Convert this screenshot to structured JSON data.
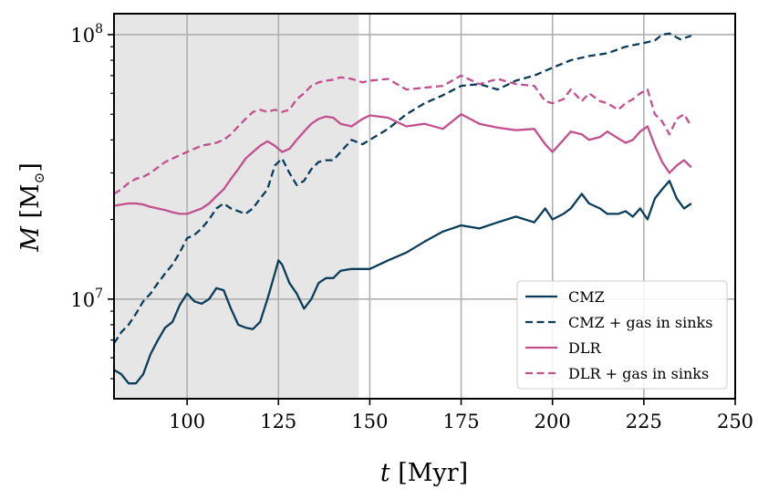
{
  "chart_data": {
    "type": "line",
    "title": "",
    "xlabel": "t [Myr]",
    "ylabel": "M [M⊙]",
    "xlim": [
      80,
      250
    ],
    "ylim": [
      4200000,
      120000000
    ],
    "yscale": "log",
    "grid": true,
    "legend_position": "lower-right",
    "shaded_region": {
      "x": [
        80,
        147
      ],
      "color": "#e6e6e6"
    },
    "x_ticks": [
      100,
      125,
      150,
      175,
      200,
      225,
      250
    ],
    "x_tick_labels": [
      "100",
      "125",
      "150",
      "175",
      "200",
      "225",
      "250"
    ],
    "y_major_ticks": [
      10000000,
      100000000
    ],
    "y_tick_labels": [
      {
        "base": "10",
        "exp": "7"
      },
      {
        "base": "10",
        "exp": "8"
      }
    ],
    "colors": {
      "cmz": "#0b3d5b",
      "dlr": "#c2508f",
      "shade": "#e6e6e6"
    },
    "series": [
      {
        "name": "CMZ",
        "style": "solid",
        "color": "#0b3d5b",
        "x": [
          80,
          82,
          84,
          86,
          88,
          90,
          92,
          94,
          96,
          98,
          100,
          102,
          104,
          106,
          108,
          110,
          112,
          114,
          116,
          118,
          120,
          122,
          124,
          125,
          126,
          128,
          130,
          132,
          134,
          136,
          138,
          140,
          142,
          145,
          148,
          150,
          155,
          160,
          165,
          170,
          175,
          180,
          185,
          190,
          195,
          198,
          200,
          203,
          205,
          208,
          210,
          213,
          215,
          218,
          220,
          222,
          224,
          226,
          228,
          230,
          232,
          234,
          236,
          238
        ],
        "values": [
          5400000,
          5200000,
          4800000,
          4800000,
          5200000,
          6200000,
          7000000,
          7800000,
          8200000,
          9500000,
          10500000,
          9800000,
          9600000,
          10000000,
          11000000,
          10800000,
          9200000,
          8000000,
          7800000,
          7700000,
          8200000,
          10000000,
          12500000,
          14000000,
          13500000,
          11500000,
          10500000,
          9200000,
          10000000,
          11500000,
          12000000,
          12000000,
          12800000,
          13000000,
          13000000,
          13000000,
          14000000,
          15000000,
          16500000,
          18000000,
          19000000,
          18500000,
          19500000,
          20500000,
          19500000,
          22000000,
          20000000,
          21000000,
          22000000,
          25000000,
          23000000,
          22000000,
          21000000,
          21000000,
          21500000,
          20500000,
          22000000,
          20000000,
          24000000,
          26000000,
          28000000,
          24000000,
          22000000,
          23000000
        ]
      },
      {
        "name": "CMZ + gas in sinks",
        "style": "dashed",
        "color": "#0b3d5b",
        "x": [
          80,
          82,
          84,
          86,
          88,
          90,
          92,
          94,
          96,
          98,
          100,
          102,
          104,
          106,
          108,
          110,
          112,
          114,
          116,
          118,
          120,
          122,
          124,
          126,
          128,
          130,
          132,
          134,
          136,
          138,
          140,
          142,
          145,
          148,
          150,
          155,
          160,
          165,
          170,
          175,
          180,
          185,
          190,
          195,
          200,
          205,
          210,
          215,
          220,
          225,
          228,
          230,
          232,
          235,
          238
        ],
        "values": [
          6800000,
          7500000,
          8000000,
          8800000,
          9800000,
          10500000,
          11500000,
          12500000,
          13500000,
          15000000,
          17000000,
          17500000,
          18500000,
          20000000,
          22000000,
          23000000,
          22000000,
          21500000,
          21000000,
          22000000,
          24000000,
          26000000,
          32000000,
          34000000,
          30000000,
          27000000,
          28000000,
          31000000,
          33000000,
          33500000,
          33500000,
          36000000,
          40000000,
          38500000,
          40000000,
          44000000,
          50000000,
          55000000,
          59000000,
          64000000,
          65000000,
          62000000,
          67000000,
          70000000,
          75000000,
          80000000,
          83000000,
          85000000,
          90000000,
          93000000,
          95000000,
          100000000,
          101000000,
          96000000,
          99000000
        ]
      },
      {
        "name": "DLR",
        "style": "solid",
        "color": "#c2508f",
        "x": [
          80,
          82,
          84,
          86,
          88,
          90,
          92,
          94,
          96,
          98,
          100,
          102,
          104,
          106,
          108,
          110,
          112,
          114,
          116,
          118,
          120,
          122,
          124,
          126,
          128,
          130,
          132,
          134,
          136,
          138,
          140,
          142,
          145,
          148,
          150,
          155,
          160,
          165,
          170,
          175,
          180,
          185,
          190,
          195,
          198,
          200,
          203,
          205,
          208,
          210,
          213,
          215,
          218,
          220,
          222,
          224,
          226,
          228,
          230,
          232,
          234,
          236,
          238
        ],
        "values": [
          22500000,
          22800000,
          23000000,
          23000000,
          22800000,
          22300000,
          22000000,
          21700000,
          21300000,
          21000000,
          21000000,
          21500000,
          22000000,
          23000000,
          24500000,
          26000000,
          28500000,
          31000000,
          34000000,
          36000000,
          38000000,
          39500000,
          38000000,
          36000000,
          37000000,
          40000000,
          43000000,
          46000000,
          48000000,
          49000000,
          48500000,
          46000000,
          45000000,
          48000000,
          49500000,
          48500000,
          45000000,
          46000000,
          44000000,
          50000000,
          46000000,
          44500000,
          43500000,
          44000000,
          38500000,
          36000000,
          40000000,
          43000000,
          42000000,
          40000000,
          41000000,
          43000000,
          40500000,
          39000000,
          40000000,
          43000000,
          45000000,
          38000000,
          33000000,
          30000000,
          32000000,
          33500000,
          31500000
        ]
      },
      {
        "name": "DLR + gas in sinks",
        "style": "dashed",
        "color": "#c2508f",
        "x": [
          80,
          82,
          84,
          86,
          88,
          90,
          92,
          94,
          96,
          98,
          100,
          102,
          104,
          106,
          108,
          110,
          112,
          114,
          116,
          118,
          120,
          122,
          124,
          126,
          128,
          130,
          132,
          134,
          136,
          138,
          140,
          142,
          145,
          148,
          150,
          155,
          160,
          165,
          170,
          175,
          180,
          185,
          190,
          195,
          198,
          200,
          203,
          205,
          208,
          210,
          213,
          215,
          218,
          220,
          222,
          224,
          226,
          228,
          230,
          232,
          234,
          236,
          238
        ],
        "values": [
          25000000,
          26000000,
          27500000,
          28500000,
          29000000,
          30000000,
          31500000,
          33000000,
          34000000,
          35000000,
          36000000,
          37000000,
          38000000,
          38500000,
          39000000,
          40000000,
          42000000,
          45000000,
          48000000,
          51000000,
          52000000,
          51000000,
          52000000,
          51000000,
          52000000,
          57000000,
          60000000,
          64000000,
          66000000,
          67000000,
          67500000,
          69000000,
          68000000,
          66000000,
          67000000,
          68000000,
          62000000,
          63000000,
          64000000,
          70000000,
          65000000,
          68000000,
          65000000,
          64000000,
          56000000,
          55000000,
          57000000,
          62000000,
          56000000,
          60000000,
          56000000,
          55000000,
          52000000,
          55000000,
          57000000,
          60000000,
          62000000,
          50000000,
          47000000,
          42000000,
          48000000,
          50000000,
          45000000
        ]
      }
    ]
  }
}
